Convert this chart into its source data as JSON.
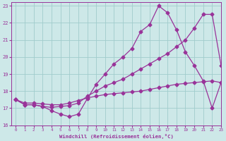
{
  "title": "",
  "xlabel": "Windchill (Refroidissement éolien,°C)",
  "background_color": "#cde8e8",
  "grid_color": "#a0cccc",
  "line_color": "#993399",
  "xlim": [
    -0.5,
    23
  ],
  "ylim": [
    16,
    23.2
  ],
  "xticks": [
    0,
    1,
    2,
    3,
    4,
    5,
    6,
    7,
    8,
    9,
    10,
    11,
    12,
    13,
    14,
    15,
    16,
    17,
    18,
    19,
    20,
    21,
    22,
    23
  ],
  "yticks": [
    16,
    17,
    18,
    19,
    20,
    21,
    22,
    23
  ],
  "line1_x": [
    0,
    1,
    2,
    3,
    4,
    5,
    6,
    7,
    8,
    9,
    10,
    11,
    12,
    13,
    14,
    15,
    16,
    17,
    18,
    19,
    20,
    21,
    22,
    23
  ],
  "line1_y": [
    17.5,
    17.2,
    17.2,
    17.1,
    16.85,
    16.65,
    16.5,
    16.65,
    17.55,
    18.4,
    19.0,
    19.6,
    20.0,
    20.5,
    21.5,
    21.9,
    23.0,
    22.6,
    21.6,
    20.3,
    19.5,
    18.6,
    17.0,
    18.5
  ],
  "line2_x": [
    0,
    1,
    2,
    3,
    4,
    5,
    6,
    7,
    8,
    9,
    10,
    11,
    12,
    13,
    14,
    15,
    16,
    17,
    18,
    19,
    20,
    21,
    22,
    23
  ],
  "line2_y": [
    17.5,
    17.2,
    17.2,
    17.1,
    17.05,
    17.1,
    17.15,
    17.3,
    17.7,
    18.0,
    18.3,
    18.5,
    18.7,
    19.0,
    19.3,
    19.6,
    19.9,
    20.2,
    20.6,
    21.0,
    21.7,
    22.5,
    22.5,
    19.5
  ],
  "line3_x": [
    0,
    1,
    2,
    3,
    4,
    5,
    6,
    7,
    8,
    9,
    10,
    11,
    12,
    13,
    14,
    15,
    16,
    17,
    18,
    19,
    20,
    21,
    22,
    23
  ],
  "line3_y": [
    17.5,
    17.3,
    17.3,
    17.25,
    17.2,
    17.2,
    17.3,
    17.45,
    17.6,
    17.7,
    17.8,
    17.85,
    17.9,
    17.95,
    18.0,
    18.1,
    18.2,
    18.3,
    18.4,
    18.45,
    18.5,
    18.55,
    18.6,
    18.5
  ]
}
